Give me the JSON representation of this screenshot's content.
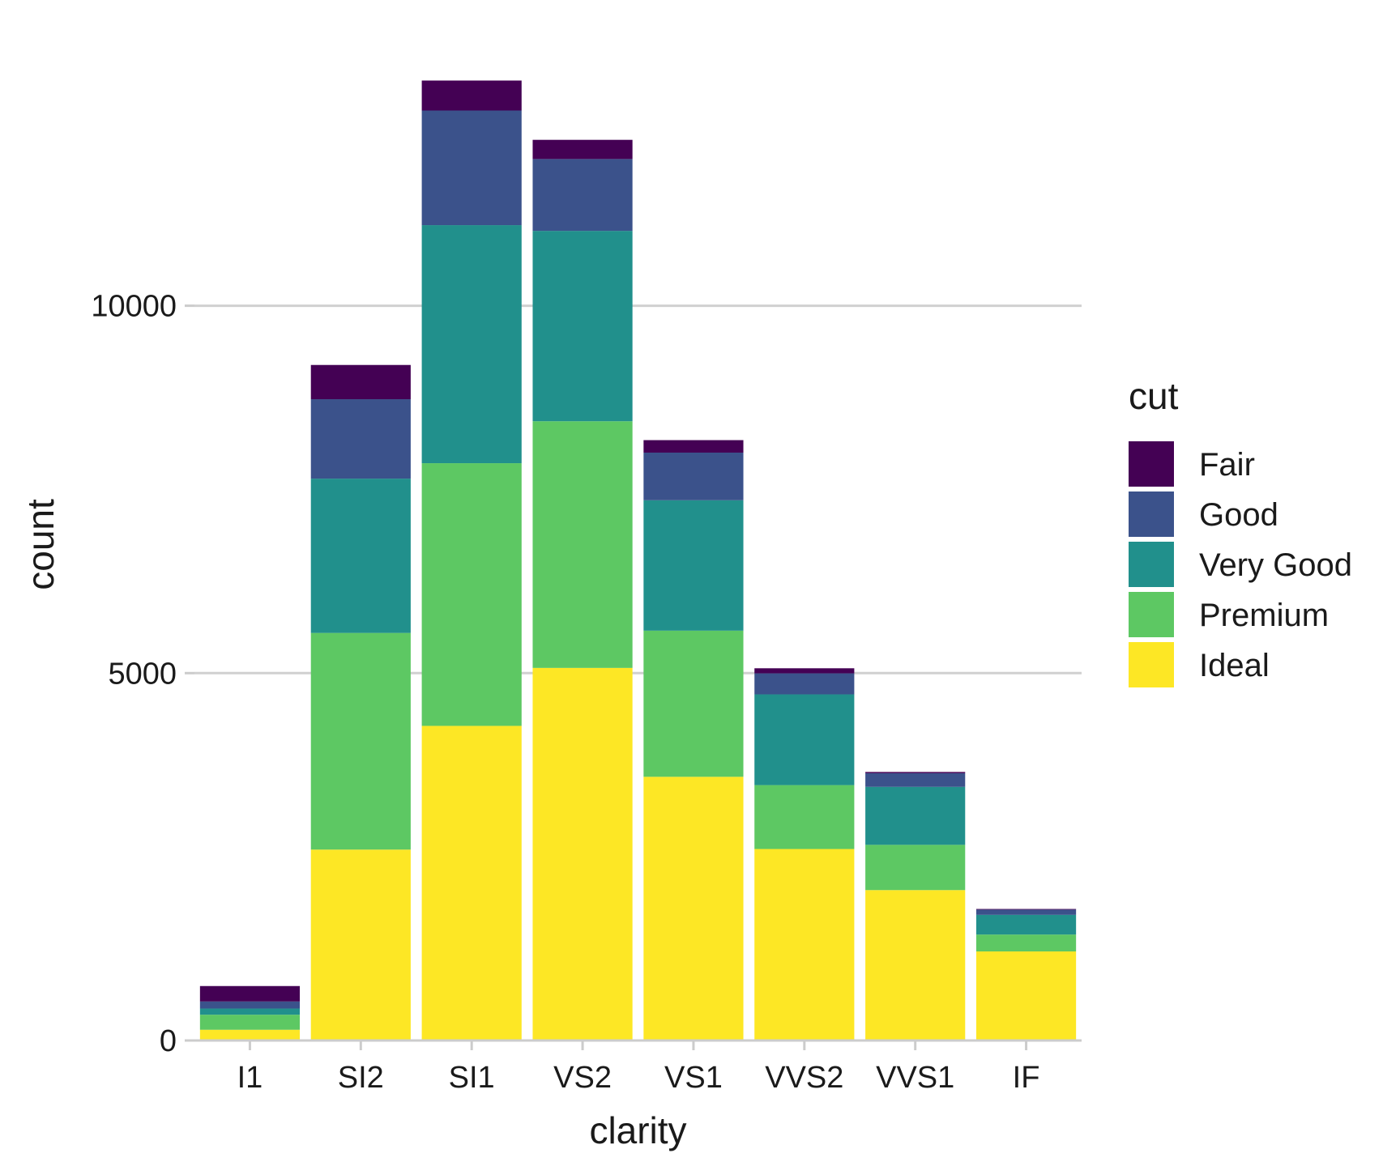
{
  "chart_data": {
    "type": "bar",
    "stacked": true,
    "xlabel": "clarity",
    "ylabel": "count",
    "categories": [
      "I1",
      "SI2",
      "SI1",
      "VS2",
      "VS1",
      "VVS2",
      "VVS1",
      "IF"
    ],
    "ylim": [
      0,
      13500
    ],
    "yticks": [
      0,
      5000,
      10000
    ],
    "ytick_labels": [
      "0",
      "5000",
      "10000"
    ],
    "grid": true,
    "legend": {
      "title": "cut",
      "position": "right"
    },
    "series": [
      {
        "name": "Ideal",
        "color": "#FDE725",
        "values": [
          146,
          2598,
          4282,
          5071,
          3589,
          2606,
          2047,
          1212
        ]
      },
      {
        "name": "Premium",
        "color": "#5DC863",
        "values": [
          205,
          2949,
          3575,
          3357,
          1989,
          870,
          616,
          230
        ]
      },
      {
        "name": "Very Good",
        "color": "#21908C",
        "values": [
          84,
          2100,
          3240,
          2591,
          1775,
          1235,
          789,
          268
        ]
      },
      {
        "name": "Good",
        "color": "#3B528B",
        "values": [
          96,
          1081,
          1560,
          978,
          648,
          286,
          186,
          71
        ]
      },
      {
        "name": "Fair",
        "color": "#440154",
        "values": [
          210,
          466,
          408,
          261,
          170,
          69,
          17,
          9
        ]
      }
    ],
    "legend_order": [
      "Fair",
      "Good",
      "Very Good",
      "Premium",
      "Ideal"
    ]
  }
}
